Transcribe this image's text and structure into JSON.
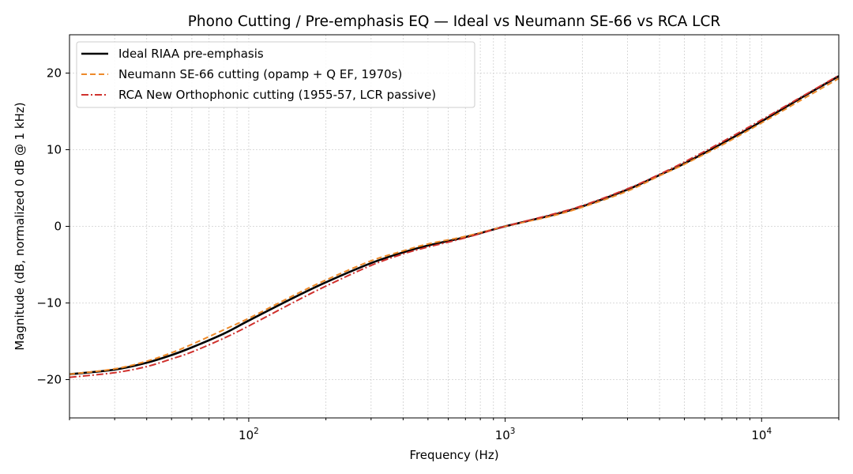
{
  "chart_data": {
    "type": "line",
    "title": "Phono Cutting / Pre-emphasis EQ — Ideal vs Neumann SE-66 vs RCA LCR",
    "xlabel": "Frequency (Hz)",
    "ylabel": "Magnitude (dB, normalized 0 dB @ 1 kHz)",
    "xscale": "log",
    "xlim": [
      20,
      20000
    ],
    "ylim": [
      -25,
      25
    ],
    "xticks": [
      {
        "value": 100,
        "base": "10",
        "exp": "2"
      },
      {
        "value": 1000,
        "base": "10",
        "exp": "3"
      },
      {
        "value": 10000,
        "base": "10",
        "exp": "4"
      }
    ],
    "yticks": [
      {
        "value": 20,
        "label": "20"
      },
      {
        "value": 10,
        "label": "10"
      },
      {
        "value": 0,
        "label": "0"
      },
      {
        "value": -10,
        "label": "−10"
      },
      {
        "value": -20,
        "label": "−20"
      }
    ],
    "grid": true,
    "legend_position": "top-left",
    "x": [
      20,
      30,
      40,
      50,
      60,
      80,
      100,
      150,
      200,
      300,
      400,
      500,
      700,
      1000,
      1500,
      2000,
      3000,
      4000,
      5000,
      7000,
      10000,
      15000,
      20000
    ],
    "series": [
      {
        "name": "Ideal RIAA pre-emphasis",
        "color": "#000000",
        "dash": "solid",
        "values": [
          -19.3,
          -18.7,
          -17.8,
          -16.8,
          -15.8,
          -14.0,
          -12.3,
          -9.3,
          -7.3,
          -4.8,
          -3.4,
          -2.5,
          -1.4,
          0.0,
          1.4,
          2.6,
          4.8,
          6.7,
          8.2,
          10.8,
          13.7,
          17.2,
          19.6
        ]
      },
      {
        "name": "Neumann SE-66 cutting (opamp + Q EF, 1970s)",
        "color": "#ee8a2a",
        "dash": "dashed",
        "values": [
          -19.3,
          -18.6,
          -17.6,
          -16.5,
          -15.4,
          -13.5,
          -12.0,
          -9.0,
          -7.0,
          -4.5,
          -3.2,
          -2.3,
          -1.3,
          0.0,
          1.3,
          2.5,
          4.6,
          6.6,
          8.1,
          10.6,
          13.5,
          16.9,
          19.3
        ]
      },
      {
        "name": "RCA New Orthophonic cutting (1955-57, LCR passive)",
        "color": "#d0312d",
        "dash": "dashdot",
        "values": [
          -19.7,
          -19.1,
          -18.3,
          -17.3,
          -16.4,
          -14.6,
          -13.0,
          -9.9,
          -7.8,
          -5.1,
          -3.6,
          -2.7,
          -1.5,
          0.0,
          1.5,
          2.7,
          4.9,
          6.8,
          8.4,
          11.0,
          13.9,
          17.3,
          19.7
        ]
      }
    ]
  }
}
